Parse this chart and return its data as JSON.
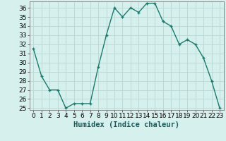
{
  "x": [
    0,
    1,
    2,
    3,
    4,
    5,
    6,
    7,
    8,
    9,
    10,
    11,
    12,
    13,
    14,
    15,
    16,
    17,
    18,
    19,
    20,
    21,
    22,
    23
  ],
  "y": [
    31.5,
    28.5,
    27.0,
    27.0,
    25.0,
    25.5,
    25.5,
    25.5,
    29.5,
    33.0,
    36.0,
    35.0,
    36.0,
    35.5,
    36.5,
    36.5,
    34.5,
    34.0,
    32.0,
    32.5,
    32.0,
    30.5,
    28.0,
    25.0
  ],
  "line_color": "#1a7a6e",
  "marker": "+",
  "markersize": 3,
  "linewidth": 1.0,
  "markeredgewidth": 1.0,
  "bg_color": "#d6f0ee",
  "grid_color": "#b8d8d4",
  "xlabel": "Humidex (Indice chaleur)",
  "xlabel_fontsize": 7.5,
  "tick_fontsize": 6.5,
  "ylim": [
    25,
    36.5
  ],
  "yticks": [
    25,
    26,
    27,
    28,
    29,
    30,
    31,
    32,
    33,
    34,
    35,
    36
  ],
  "xlim": [
    -0.5,
    23.5
  ],
  "xticks": [
    0,
    1,
    2,
    3,
    4,
    5,
    6,
    7,
    8,
    9,
    10,
    11,
    12,
    13,
    14,
    15,
    16,
    17,
    18,
    19,
    20,
    21,
    22,
    23
  ]
}
